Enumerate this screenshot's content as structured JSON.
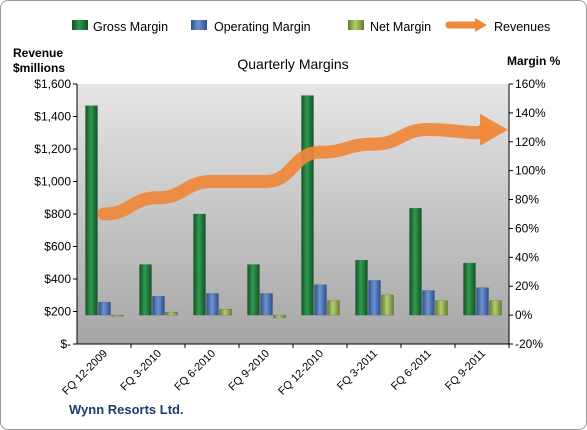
{
  "chart_data": {
    "type": "bar",
    "title": "Quarterly Margins",
    "y_left_label": [
      "Revenue",
      "$millions"
    ],
    "y_right_label": "Margin %",
    "categories": [
      "FQ 12-2009",
      "FQ 3-2010",
      "FQ 6-2010",
      "FQ 9-2010",
      "FQ 12-2010",
      "FQ 3-2011",
      "FQ 6-2011",
      "FQ 9-2011"
    ],
    "series": [
      {
        "name": "Gross Margin",
        "axis": "right",
        "values": [
          145,
          35,
          70,
          35,
          152,
          38,
          74,
          36
        ],
        "color": "#1e7b3a"
      },
      {
        "name": "Operating Margin",
        "axis": "right",
        "values": [
          9,
          13,
          15,
          15,
          21,
          24,
          17,
          19
        ],
        "color": "#4a6fb4"
      },
      {
        "name": "Net Margin",
        "axis": "right",
        "values": [
          -0.5,
          2,
          4,
          -2,
          10,
          14,
          10,
          10
        ],
        "color": "#8aab4a"
      },
      {
        "name": "Revenues",
        "type": "line",
        "axis": "left",
        "values": [
          800,
          900,
          1000,
          1000,
          1180,
          1230,
          1320,
          1300
        ],
        "color": "#f0883a"
      }
    ],
    "y_left_ticks": [
      "$-",
      "$200",
      "$400",
      "$600",
      "$800",
      "$1,000",
      "$1,200",
      "$1,400",
      "$1,600"
    ],
    "y_right_ticks": [
      "-20%",
      "0%",
      "20%",
      "40%",
      "60%",
      "80%",
      "100%",
      "120%",
      "140%",
      "160%"
    ],
    "ylim_left": [
      0,
      1600
    ],
    "ylim_right": [
      -20,
      160
    ],
    "grid": false,
    "legend_position": "top"
  },
  "footer": {
    "company": "Wynn Resorts Ltd."
  }
}
